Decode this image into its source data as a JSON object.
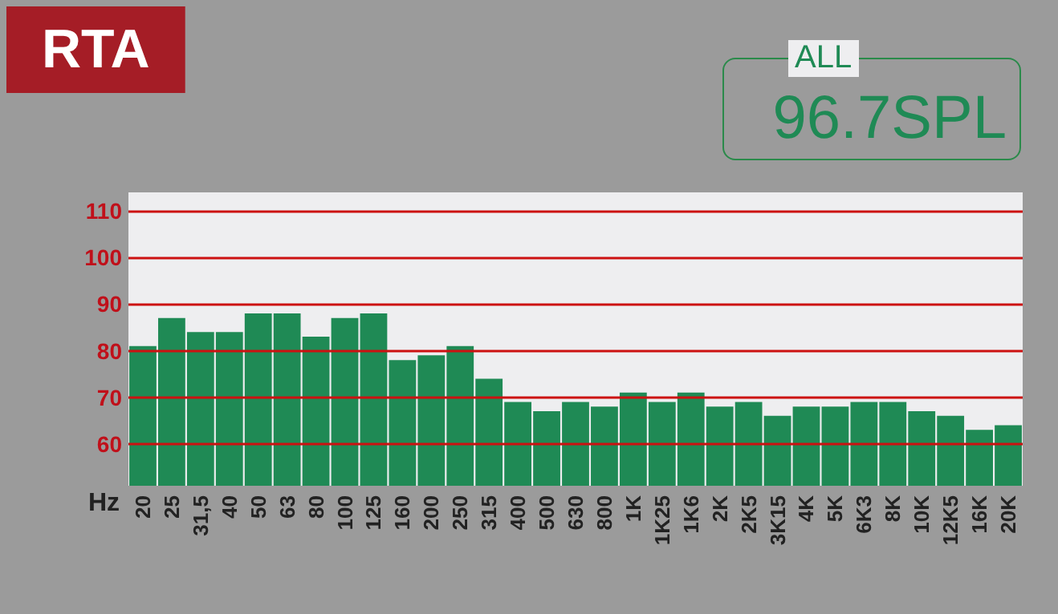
{
  "chart_data": {
    "type": "bar",
    "title": "RTA",
    "xlabel": "Hz",
    "annotations": [
      "ALL",
      "96.7SPL"
    ],
    "categories": [
      "20",
      "25",
      "31,5",
      "40",
      "50",
      "63",
      "80",
      "100",
      "125",
      "160",
      "200",
      "250",
      "315",
      "400",
      "500",
      "630",
      "800",
      "1K",
      "1K25",
      "1K6",
      "2K",
      "2K5",
      "3K15",
      "4K",
      "5K",
      "6K3",
      "8K",
      "10K",
      "12K5",
      "16K",
      "20K"
    ],
    "values": [
      81,
      87,
      84,
      84,
      88,
      88,
      83,
      87,
      88,
      78,
      79,
      81,
      74,
      69,
      67,
      69,
      68,
      71,
      69,
      71,
      68,
      69,
      66,
      68,
      68,
      69,
      69,
      67,
      66,
      63,
      64
    ],
    "color": "#1f8a55",
    "ylim": [
      51,
      114
    ],
    "yticks": [
      60,
      70,
      80,
      90,
      100,
      110
    ],
    "grid": "y"
  }
}
